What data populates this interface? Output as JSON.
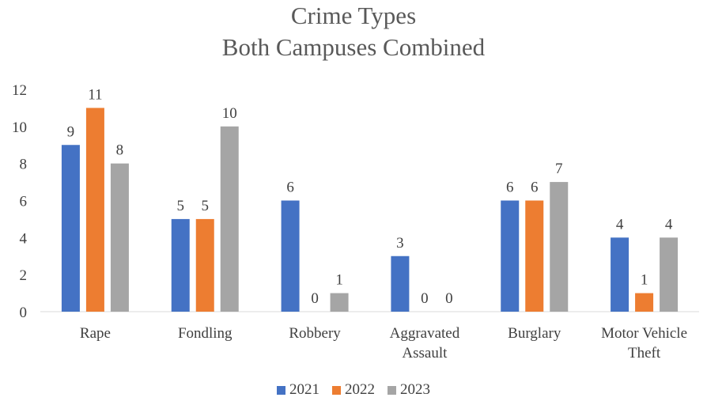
{
  "chart_data": {
    "type": "bar",
    "title": "Crime Types",
    "subtitle": "Both Campuses Combined",
    "categories": [
      [
        "Rape"
      ],
      [
        "Fondling"
      ],
      [
        "Robbery"
      ],
      [
        "Aggravated",
        "Assault"
      ],
      [
        "Burglary"
      ],
      [
        "Motor Vehicle",
        "Theft"
      ]
    ],
    "series": [
      {
        "name": "2021",
        "color": "#4472c4",
        "values": [
          9,
          5,
          6,
          3,
          6,
          4
        ]
      },
      {
        "name": "2022",
        "color": "#ed7d31",
        "values": [
          11,
          5,
          0,
          0,
          6,
          1
        ]
      },
      {
        "name": "2023",
        "color": "#a5a5a5",
        "values": [
          8,
          10,
          1,
          0,
          7,
          4
        ]
      }
    ],
    "ylim": [
      0,
      12
    ],
    "yticks": [
      0,
      2,
      4,
      6,
      8,
      10,
      12
    ],
    "grid": false,
    "legend": "bottom-center",
    "data_labels": true
  }
}
